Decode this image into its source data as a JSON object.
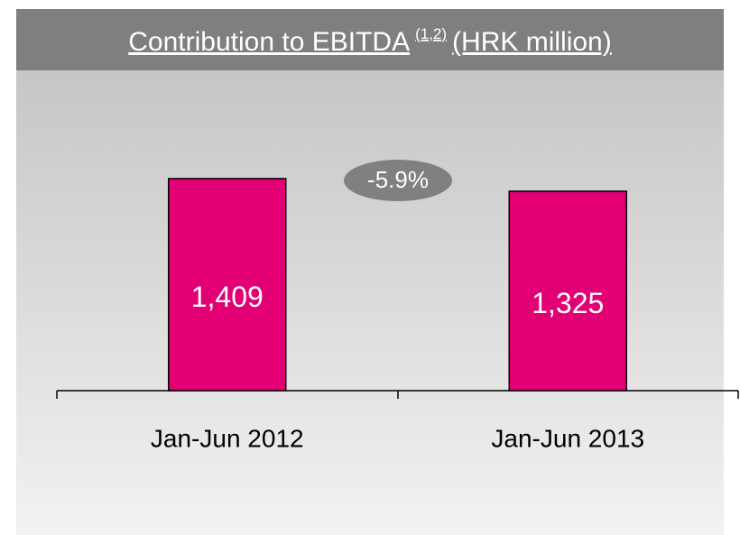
{
  "chart_data": {
    "type": "bar",
    "title": "Contribution to EBITDA",
    "title_superscript": "(1,2)",
    "title_suffix": "(HRK million)",
    "categories": [
      "Jan-Jun 2012",
      "Jan-Jun 2013"
    ],
    "values": [
      1409,
      1325
    ],
    "value_labels": [
      "1,409",
      "1,325"
    ],
    "color": "#e20074",
    "annotation": "-5.9%",
    "ylim": [
      0,
      2000
    ]
  }
}
